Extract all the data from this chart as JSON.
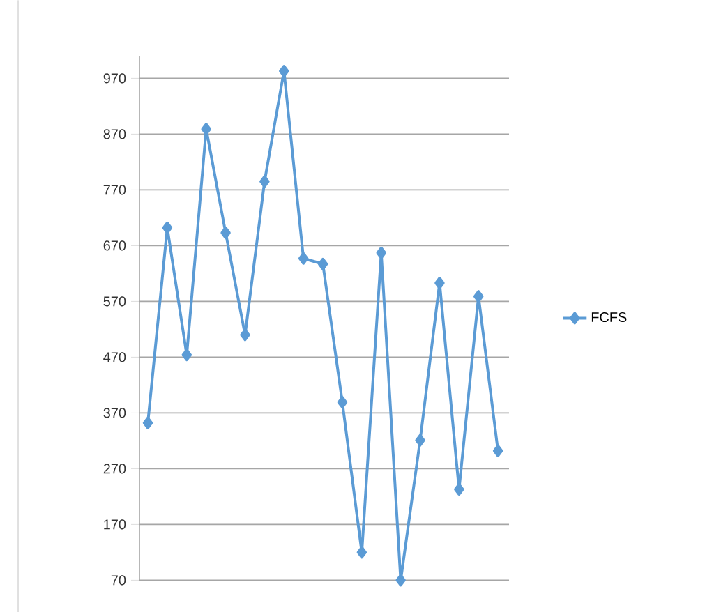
{
  "chart_data": {
    "type": "line",
    "categories": [
      null,
      null,
      null,
      null,
      null,
      null,
      null,
      null,
      null,
      null,
      null,
      null,
      null,
      null,
      null,
      null,
      null,
      null,
      null
    ],
    "series": [
      {
        "name": "FCFS",
        "color": "#5b9bd5",
        "values": [
          352,
          702,
          474,
          879,
          693,
          510,
          785,
          983,
          647,
          637,
          389,
          120,
          657,
          70,
          321,
          603,
          233,
          579,
          302
        ]
      }
    ],
    "ylim": [
      70,
      1010
    ],
    "yticks": [
      70,
      170,
      270,
      370,
      470,
      570,
      670,
      770,
      870,
      970
    ],
    "grid": "y",
    "legend": "right",
    "marker": "diamond",
    "line_style": "solid"
  }
}
